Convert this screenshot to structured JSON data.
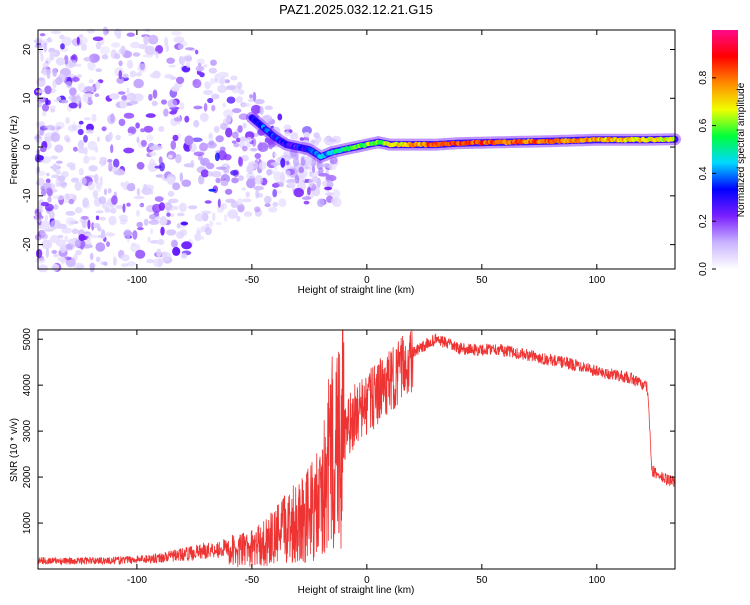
{
  "title": "PAZ1.2025.032.12.21.G15",
  "chart_data": [
    {
      "type": "heatmap",
      "name": "spectrogram",
      "xlabel": "Height of straight line (km)",
      "ylabel": "Frequency (Hz)",
      "xlim": [
        -143,
        134
      ],
      "ylim": [
        -25,
        24
      ],
      "xticks": [
        -100,
        -50,
        0,
        50,
        100
      ],
      "yticks": [
        -20,
        -10,
        0,
        10,
        20
      ],
      "colorbar": {
        "label": "Normalized spectral amplitude",
        "range": [
          0,
          1
        ],
        "ticks": [
          0.0,
          0.2,
          0.4,
          0.6,
          0.8
        ],
        "tick_labels": [
          "0.0",
          "0.2",
          "0.4",
          "0.6",
          "0.8"
        ],
        "colors": [
          "#ffffff",
          "#c9b3ff",
          "#7a1fff",
          "#0000ff",
          "#00d8ff",
          "#00ff3c",
          "#f0ff00",
          "#ff8a00",
          "#ff0000",
          "#ff0a8a"
        ]
      },
      "signal_ridge": {
        "x": [
          -50,
          -45,
          -40,
          -35,
          -30,
          -25,
          -20,
          -15,
          -10,
          -5,
          0,
          5,
          10,
          20,
          30,
          40,
          60,
          80,
          100,
          120,
          134
        ],
        "freq": [
          6,
          4,
          2,
          0.5,
          0,
          -0.5,
          -2,
          -1,
          -0.5,
          0,
          0.5,
          1,
          0.5,
          0.5,
          0.5,
          0.8,
          1,
          1.2,
          1.5,
          1.5,
          1.6
        ],
        "amplitude": [
          0.3,
          0.35,
          0.35,
          0.3,
          0.3,
          0.35,
          0.4,
          0.45,
          0.5,
          0.55,
          0.6,
          0.6,
          0.65,
          0.75,
          0.85,
          0.85,
          0.8,
          0.8,
          0.75,
          0.7,
          0.65
        ]
      }
    },
    {
      "type": "line",
      "name": "snr",
      "xlabel": "Height of straight line (km)",
      "ylabel": "SNR (10 * v/v)",
      "xlim": [
        -143,
        134
      ],
      "ylim": [
        0,
        5200
      ],
      "xticks": [
        -100,
        -50,
        0,
        50,
        100
      ],
      "yticks": [
        1000,
        2000,
        3000,
        4000,
        5000
      ],
      "color": "#ee3333",
      "series": [
        {
          "x": [
            -143,
            -130,
            -120,
            -110,
            -100,
            -90,
            -80,
            -70,
            -60,
            -50,
            -45,
            -40,
            -35,
            -30,
            -25,
            -20,
            -15,
            -10,
            -5,
            0,
            5,
            10,
            15,
            20,
            25,
            30,
            35,
            40,
            45,
            50,
            55,
            60,
            65,
            70,
            75,
            80,
            85,
            90,
            95,
            100,
            105,
            110,
            115,
            120,
            122,
            124,
            126,
            130,
            134
          ],
          "values": [
            150,
            140,
            150,
            150,
            170,
            200,
            260,
            330,
            380,
            450,
            560,
            700,
            900,
            1100,
            1200,
            1400,
            2600,
            3000,
            3500,
            3700,
            4000,
            4200,
            4500,
            4700,
            4850,
            5000,
            4900,
            4800,
            4780,
            4760,
            4800,
            4750,
            4700,
            4650,
            4600,
            4550,
            4500,
            4450,
            4400,
            4300,
            4250,
            4200,
            4150,
            4000,
            3950,
            2150,
            2050,
            1950,
            1900
          ]
        }
      ]
    }
  ]
}
